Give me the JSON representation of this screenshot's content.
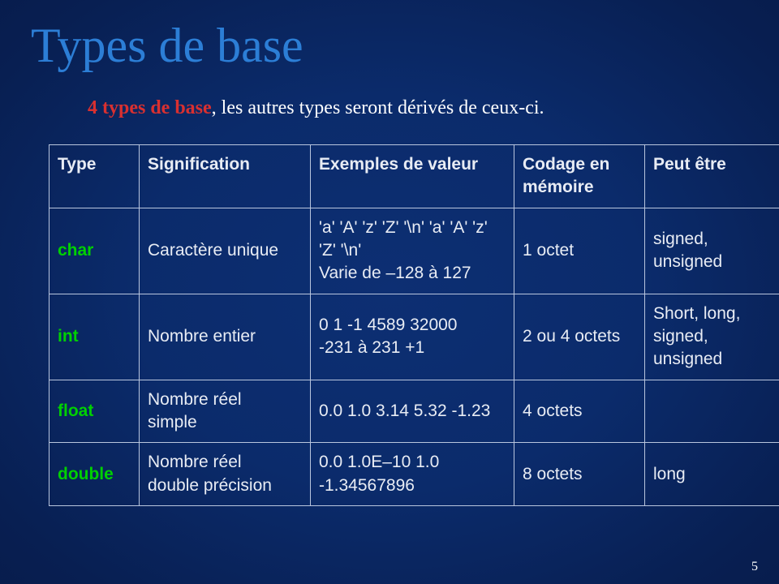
{
  "title": {
    "text": "Types de base",
    "color": "#2c7ed6"
  },
  "subtitle": {
    "lead": "4 types de base",
    "rest": ", les autres types seront dérivés de ceux-ci."
  },
  "table": {
    "headers": {
      "type": "Type",
      "signification": "Signification",
      "exemples": "Exemples de valeur",
      "codage": "Codage en mémoire",
      "peut": "Peut être"
    },
    "rows": [
      {
        "type": "char",
        "signification": "Caractère unique",
        "exemples": "'a' 'A' 'z' 'Z' '\\n' 'a' 'A' 'z' 'Z' '\\n'\nVarie de –128 à 127",
        "codage": "1 octet",
        "peut": "signed,\nunsigned"
      },
      {
        "type": "int",
        "signification": "Nombre entier",
        "exemples": "0 1 -1  4589  32000\n   -231 à 231 +1",
        "codage": "2 ou 4 octets",
        "peut": "Short, long, signed,\nunsigned"
      },
      {
        "type": "float",
        "signification": "Nombre réel\nsimple",
        "exemples": "0.0  1.0  3.14  5.32   -1.23",
        "codage": "4 octets",
        "peut": ""
      },
      {
        "type": "double",
        "signification": "Nombre réel\ndouble précision",
        "exemples": "0.0 1.0E–10   1.0    -1.34567896",
        "codage": "8 octets",
        "peut": "long"
      }
    ]
  },
  "page_number": "5"
}
